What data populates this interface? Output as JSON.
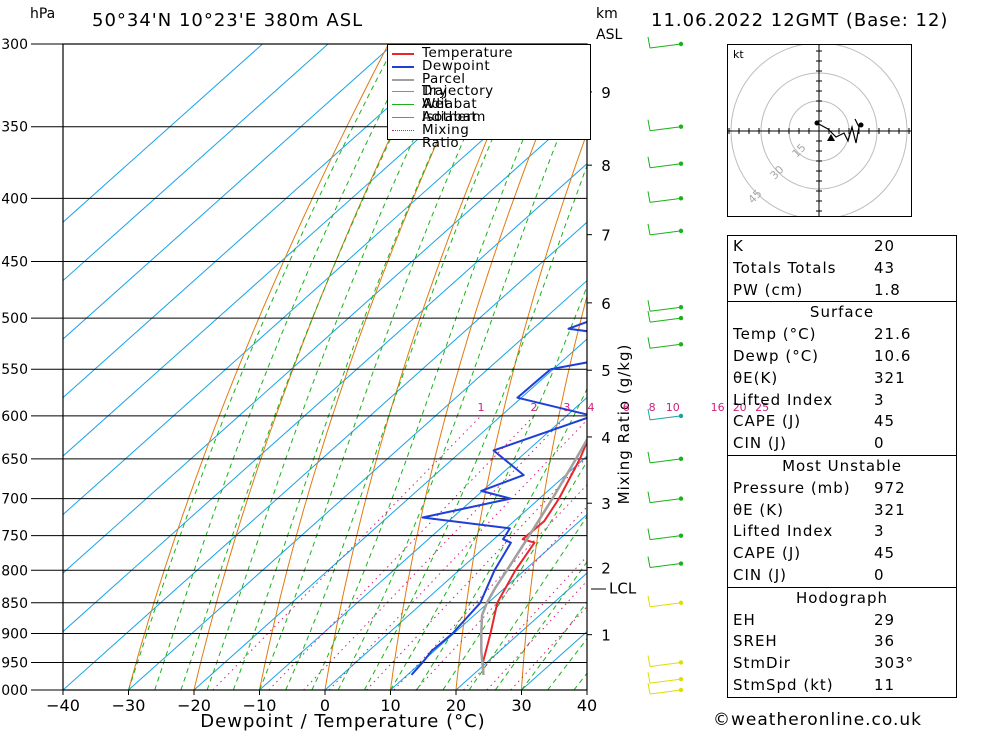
{
  "header": {
    "unit_pressure": "hPa",
    "location": "50°34'N  10°23'E  380m  ASL",
    "unit_height_km": "km",
    "unit_height_asl": "ASL",
    "datetime": "11.06.2022  12GMT  (Base: 12)"
  },
  "chart_data": {
    "type": "line",
    "xlabel": "Dewpoint / Temperature (°C)",
    "ylabel_right": "Mixing Ratio (g/kg)",
    "xlim": [
      -40,
      40
    ],
    "ylim_hpa": [
      1000,
      300
    ],
    "x_ticks": [
      "−40",
      "−30",
      "−20",
      "−10",
      "0",
      "10",
      "20",
      "30",
      "40"
    ],
    "x_tick_values": [
      -40,
      -30,
      -20,
      -10,
      0,
      10,
      20,
      30,
      40
    ],
    "pressure_ticks": [
      300,
      350,
      400,
      450,
      500,
      550,
      600,
      650,
      700,
      750,
      800,
      850,
      900,
      950,
      1000
    ],
    "height_ticks": [
      {
        "km": "1",
        "hpa": 902
      },
      {
        "km": "2",
        "hpa": 796
      },
      {
        "km": "3",
        "hpa": 706
      },
      {
        "km": "4",
        "hpa": 624
      },
      {
        "km": "5",
        "hpa": 551
      },
      {
        "km": "6",
        "hpa": 486
      },
      {
        "km": "7",
        "hpa": 428
      },
      {
        "km": "8",
        "hpa": 376
      },
      {
        "km": "9",
        "hpa": 328
      }
    ],
    "lcl": {
      "label": "LCL",
      "hpa": 826
    },
    "mixing_ratio_labels": [
      "1",
      "2",
      "3",
      "4",
      "6",
      "8",
      "10",
      "16",
      "20",
      "25"
    ],
    "mixing_ratio_values": [
      1,
      2,
      3,
      4,
      6,
      8,
      10,
      16,
      20,
      25
    ],
    "legend": [
      "Temperature",
      "Dewpoint",
      "Parcel Trajectory",
      "Dry Adiabat",
      "Wet Adiabat",
      "Isotherm",
      "Mixing Ratio"
    ],
    "series": [
      {
        "name": "Temperature",
        "color": "#e8262c",
        "points": [
          [
            972,
            21.6
          ],
          [
            950,
            19.4
          ],
          [
            900,
            15.6
          ],
          [
            850,
            11.4
          ],
          [
            800,
            8.6
          ],
          [
            760,
            6.8
          ],
          [
            755,
            4.4
          ],
          [
            730,
            4.6
          ],
          [
            700,
            3.0
          ],
          [
            650,
            -0.6
          ],
          [
            600,
            -5.2
          ],
          [
            575,
            -7.2
          ],
          [
            550,
            -10.2
          ],
          [
            520,
            -13.6
          ],
          [
            500,
            -15.0
          ],
          [
            450,
            -21.2
          ],
          [
            400,
            -28.6
          ],
          [
            380,
            -31.2
          ],
          [
            350,
            -37.8
          ],
          [
            330,
            -41.0
          ],
          [
            300,
            -47.4
          ]
        ]
      },
      {
        "name": "Dewpoint",
        "color": "#1f3fd6",
        "points": [
          [
            972,
            10.6
          ],
          [
            950,
            10.2
          ],
          [
            930,
            9.6
          ],
          [
            900,
            9.8
          ],
          [
            850,
            8.8
          ],
          [
            800,
            5.4
          ],
          [
            760,
            3.2
          ],
          [
            755,
            1.4
          ],
          [
            740,
            0.6
          ],
          [
            725,
            -14.6
          ],
          [
            700,
            -4.4
          ],
          [
            690,
            -10.2
          ],
          [
            670,
            -6.4
          ],
          [
            640,
            -15.2
          ],
          [
            600,
            -6.0
          ],
          [
            580,
            -20.6
          ],
          [
            550,
            -20.4
          ],
          [
            525,
            -4.2
          ],
          [
            510,
            -24.6
          ],
          [
            500,
            -22.0
          ],
          [
            450,
            -21.4
          ],
          [
            420,
            -18.8
          ],
          [
            400,
            -21.0
          ],
          [
            390,
            -30.8
          ],
          [
            380,
            -23.0
          ],
          [
            350,
            -22.8
          ],
          [
            335,
            -39.0
          ],
          [
            320,
            -26.8
          ],
          [
            305,
            -37.6
          ],
          [
            300,
            -30.2
          ]
        ]
      },
      {
        "name": "Parcel Trajectory",
        "color": "#a0a0a0",
        "points": [
          [
            972,
            21.6
          ],
          [
            930,
            17.2
          ],
          [
            900,
            14.2
          ],
          [
            870,
            11.2
          ],
          [
            850,
            9.8
          ],
          [
            826,
            8.5
          ],
          [
            800,
            7.3
          ],
          [
            750,
            4.8
          ],
          [
            700,
            2.0
          ],
          [
            650,
            -1.2
          ],
          [
            600,
            -4.8
          ],
          [
            550,
            -9.0
          ],
          [
            500,
            -14.0
          ],
          [
            450,
            -19.8
          ],
          [
            400,
            -26.8
          ],
          [
            350,
            -35.2
          ],
          [
            300,
            -45.6
          ]
        ]
      }
    ]
  },
  "hodograph": {
    "unit": "kt",
    "ring_labels": [
      "15",
      "30",
      "45"
    ]
  },
  "indices": {
    "rows": [
      {
        "label": "K",
        "value": "20"
      },
      {
        "label": "Totals Totals",
        "value": "43"
      },
      {
        "label": "PW (cm)",
        "value": "1.8"
      }
    ]
  },
  "surface": {
    "title": "Surface",
    "rows": [
      {
        "label": "Temp (°C)",
        "value": "21.6"
      },
      {
        "label": "Dewp (°C)",
        "value": "10.6"
      },
      {
        "label": "θE(K)",
        "value": "321"
      },
      {
        "label": "Lifted Index",
        "value": "3"
      },
      {
        "label": "CAPE (J)",
        "value": "45"
      },
      {
        "label": "CIN (J)",
        "value": "0"
      }
    ]
  },
  "most_unstable": {
    "title": "Most Unstable",
    "rows": [
      {
        "label": "Pressure (mb)",
        "value": "972"
      },
      {
        "label": "θE (K)",
        "value": "321"
      },
      {
        "label": "Lifted Index",
        "value": "3"
      },
      {
        "label": "CAPE (J)",
        "value": "45"
      },
      {
        "label": "CIN (J)",
        "value": "0"
      }
    ]
  },
  "hodograph_box": {
    "title": "Hodograph",
    "rows": [
      {
        "label": "EH",
        "value": "29"
      },
      {
        "label": "SREH",
        "value": "36"
      },
      {
        "label": "StmDir",
        "value": "303°"
      },
      {
        "label": "StmSpd (kt)",
        "value": "11"
      }
    ]
  },
  "colors": {
    "temperature": "#e8262c",
    "dewpoint": "#1f3fd6",
    "parcel": "#a0a0a0",
    "dry_adiabat": "#e07a10",
    "wet_adiabat": "#19b319",
    "isotherm": "#1aa3e8",
    "mixing_ratio": "#d0207a"
  },
  "footer": {
    "copyright": "©weatheronline.co.uk"
  }
}
